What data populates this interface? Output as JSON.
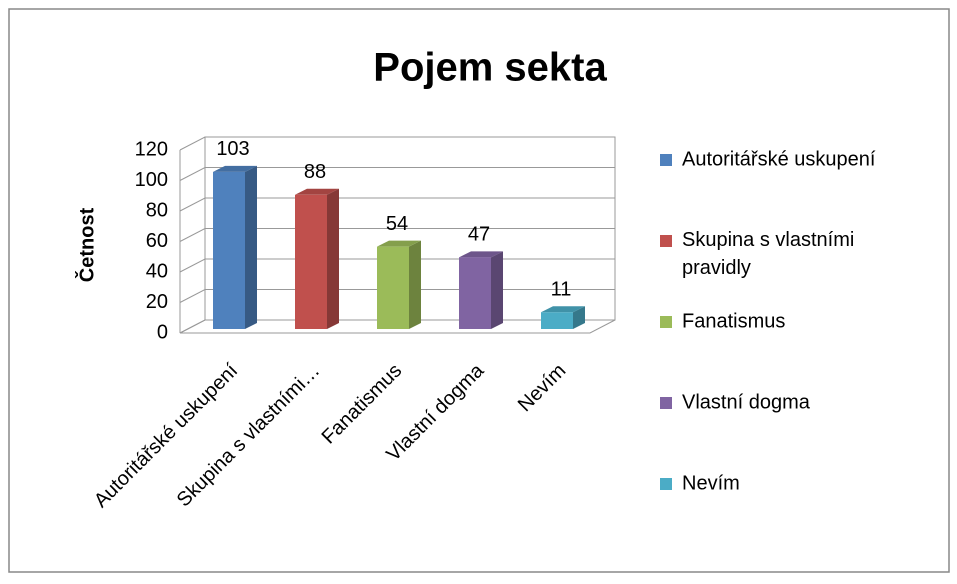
{
  "chart_data": {
    "type": "bar3d",
    "title": "Pojem sekta",
    "y_label": "Četnost",
    "categories": [
      "Autoritářské uskupení",
      "Skupina s vlastními…",
      "Fanatismus",
      "Vlastní dogma",
      "Nevím"
    ],
    "values": [
      103,
      88,
      54,
      47,
      11
    ],
    "colors": [
      "#4f81bd",
      "#c0504d",
      "#9bbb59",
      "#8064a2",
      "#4bacc6"
    ],
    "legend": [
      "Autoritářské uskupení",
      "Skupina s vlastními pravidly",
      "Fanatismus",
      "Vlastní dogma",
      "Nevím"
    ],
    "ylim": [
      0,
      120
    ],
    "yticks": [
      0,
      20,
      40,
      60,
      80,
      100,
      120
    ],
    "grid": true,
    "legend_position": "right"
  }
}
